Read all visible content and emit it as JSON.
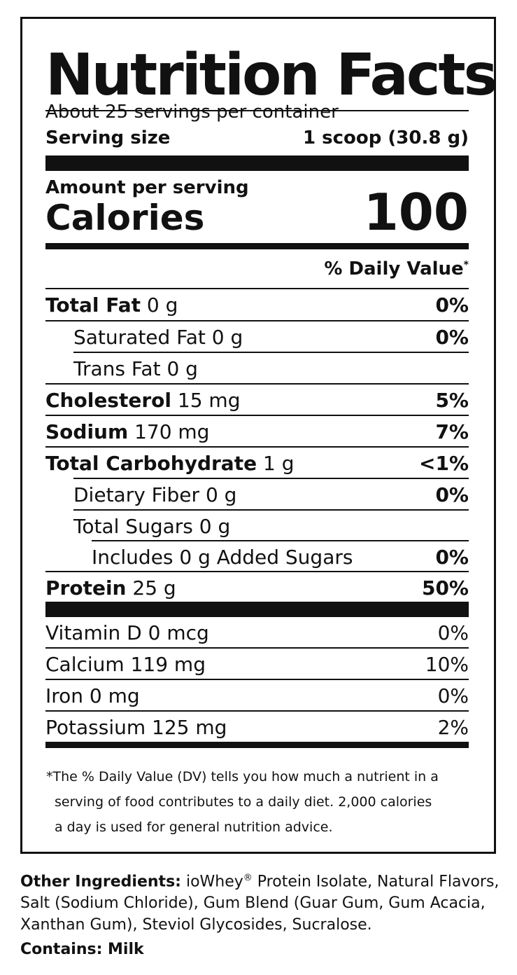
{
  "title": "Nutrition Facts",
  "servings_per_container": "About 25 servings per container",
  "serving_size": {
    "label": "Serving size",
    "value": "1 scoop (30.8 g)"
  },
  "amount_per_serving": "Amount per serving",
  "calories": {
    "label": "Calories",
    "value": "100"
  },
  "daily_value_header": "% Daily Value",
  "daily_value_mark": "*",
  "nutrients": [
    {
      "name": "Total Fat",
      "amount": "0 g",
      "dv": "0%"
    },
    {
      "name": "Saturated Fat 0 g",
      "amount": "",
      "dv": "0%"
    },
    {
      "name": "Trans Fat 0 g",
      "amount": "",
      "dv": ""
    },
    {
      "name": "Cholesterol",
      "amount": "15 mg",
      "dv": "5%"
    },
    {
      "name": "Sodium",
      "amount": "170 mg",
      "dv": "7%"
    },
    {
      "name": "Total Carbohydrate",
      "amount": "1 g",
      "dv": "<1%"
    },
    {
      "name": "Dietary Fiber 0 g",
      "amount": "",
      "dv": "0%"
    },
    {
      "name": "Total Sugars 0 g",
      "amount": "",
      "dv": ""
    },
    {
      "name": "Includes 0 g Added Sugars",
      "amount": "",
      "dv": "0%"
    },
    {
      "name": "Protein",
      "amount": "25 g",
      "dv": "50%"
    }
  ],
  "vitamins": [
    {
      "name": "Vitamin D 0 mcg",
      "dv": "0%"
    },
    {
      "name": "Calcium 119 mg",
      "dv": "10%"
    },
    {
      "name": "Iron 0 mg",
      "dv": "0%"
    },
    {
      "name": "Potassium 125 mg",
      "dv": "2%"
    }
  ],
  "footnote": {
    "line1": "*The % Daily Value (DV) tells you how much a nutrient in a",
    "line2": "serving of food contributes to a daily diet. 2,000 calories",
    "line3": "a day is used for general nutrition advice."
  },
  "other_ingredients": {
    "label": "Other Ingredients:",
    "text_part1": " ioWhey",
    "registered_mark": "®",
    "text_part2": " Protein Isolate, Natural Flavors, Salt (Sodium Chloride), Gum Blend (Guar Gum, Gum Acacia, Xanthan Gum), Steviol Glycosides, Sucralose."
  },
  "contains": "Contains: Milk"
}
